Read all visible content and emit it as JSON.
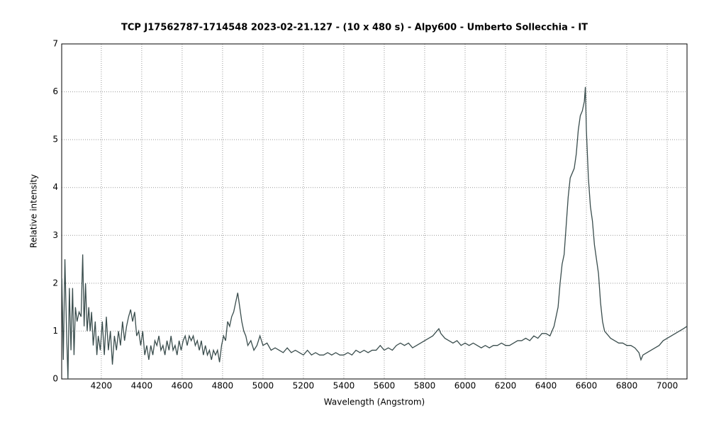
{
  "chart_data": {
    "type": "line",
    "title": "TCP J17562787-1714548   2023-02-21.127 -  (10 x 480 s) - Alpy600 -  Umberto Sollecchia - IT",
    "x_label": "Wavelength (Angstrom)",
    "y_label": "Relative intensity",
    "xlim": [
      4004,
      7098
    ],
    "ylim": [
      0,
      7
    ],
    "xticks": [
      4200,
      4400,
      4600,
      4800,
      5000,
      5200,
      5400,
      5600,
      5800,
      6000,
      6200,
      6400,
      6600,
      6800,
      7000
    ],
    "yticks": [
      0,
      1,
      2,
      3,
      4,
      5,
      6,
      7
    ],
    "grid": true,
    "x": [
      4005,
      4012,
      4020,
      4028,
      4035,
      4042,
      4050,
      4058,
      4065,
      4072,
      4080,
      4090,
      4100,
      4108,
      4115,
      4122,
      4130,
      4138,
      4145,
      4152,
      4160,
      4170,
      4178,
      4185,
      4195,
      4205,
      4215,
      4225,
      4235,
      4245,
      4255,
      4265,
      4275,
      4285,
      4295,
      4305,
      4315,
      4325,
      4335,
      4345,
      4355,
      4365,
      4375,
      4385,
      4395,
      4405,
      4415,
      4425,
      4435,
      4445,
      4455,
      4465,
      4475,
      4485,
      4495,
      4505,
      4515,
      4525,
      4535,
      4545,
      4555,
      4565,
      4575,
      4585,
      4595,
      4605,
      4615,
      4625,
      4635,
      4645,
      4655,
      4665,
      4675,
      4685,
      4695,
      4705,
      4715,
      4725,
      4735,
      4745,
      4755,
      4765,
      4775,
      4785,
      4795,
      4805,
      4815,
      4825,
      4835,
      4845,
      4855,
      4865,
      4875,
      4885,
      4895,
      4905,
      4915,
      4925,
      4940,
      4955,
      4970,
      4985,
      5000,
      5020,
      5040,
      5060,
      5080,
      5100,
      5120,
      5140,
      5160,
      5180,
      5200,
      5220,
      5240,
      5260,
      5280,
      5300,
      5320,
      5340,
      5360,
      5380,
      5400,
      5420,
      5440,
      5460,
      5480,
      5500,
      5520,
      5540,
      5560,
      5580,
      5600,
      5620,
      5640,
      5660,
      5680,
      5700,
      5720,
      5740,
      5760,
      5780,
      5800,
      5820,
      5840,
      5860,
      5870,
      5880,
      5900,
      5920,
      5940,
      5960,
      5980,
      6000,
      6020,
      6040,
      6060,
      6080,
      6100,
      6120,
      6140,
      6160,
      6180,
      6200,
      6220,
      6240,
      6260,
      6280,
      6300,
      6320,
      6340,
      6360,
      6380,
      6400,
      6420,
      6440,
      6460,
      6470,
      6480,
      6490,
      6500,
      6510,
      6520,
      6530,
      6540,
      6550,
      6560,
      6570,
      6580,
      6590,
      6595,
      6600,
      6610,
      6620,
      6630,
      6640,
      6650,
      6660,
      6670,
      6680,
      6690,
      6700,
      6720,
      6740,
      6760,
      6780,
      6800,
      6820,
      6840,
      6860,
      6870,
      6880,
      6900,
      6920,
      6940,
      6960,
      6980,
      7000,
      7020,
      7040,
      7060,
      7080,
      7098
    ],
    "series": [
      {
        "name": "TCP J17562787-1714548",
        "color": "#3a4d4d",
        "values": [
          2.1,
          0.4,
          2.5,
          1.0,
          0.0,
          1.9,
          0.6,
          1.9,
          0.5,
          1.5,
          1.2,
          1.4,
          1.3,
          2.6,
          1.1,
          2.0,
          1.0,
          1.5,
          1.0,
          1.4,
          0.7,
          1.2,
          0.5,
          0.9,
          0.6,
          1.2,
          0.5,
          1.3,
          0.6,
          1.0,
          0.3,
          0.9,
          0.6,
          1.0,
          0.7,
          1.2,
          0.8,
          1.1,
          1.3,
          1.45,
          1.2,
          1.4,
          0.9,
          1.0,
          0.7,
          1.0,
          0.5,
          0.7,
          0.4,
          0.7,
          0.5,
          0.8,
          0.7,
          0.9,
          0.6,
          0.7,
          0.5,
          0.8,
          0.6,
          0.9,
          0.6,
          0.7,
          0.5,
          0.8,
          0.6,
          0.8,
          0.9,
          0.7,
          0.9,
          0.8,
          0.9,
          0.7,
          0.8,
          0.6,
          0.8,
          0.5,
          0.7,
          0.5,
          0.6,
          0.4,
          0.6,
          0.5,
          0.6,
          0.35,
          0.7,
          0.9,
          0.8,
          1.2,
          1.1,
          1.3,
          1.4,
          1.6,
          1.8,
          1.5,
          1.2,
          1.0,
          0.9,
          0.7,
          0.8,
          0.6,
          0.7,
          0.9,
          0.7,
          0.75,
          0.6,
          0.65,
          0.6,
          0.55,
          0.65,
          0.55,
          0.6,
          0.55,
          0.5,
          0.6,
          0.5,
          0.55,
          0.5,
          0.5,
          0.55,
          0.5,
          0.55,
          0.5,
          0.5,
          0.55,
          0.5,
          0.6,
          0.55,
          0.6,
          0.55,
          0.6,
          0.6,
          0.7,
          0.6,
          0.65,
          0.6,
          0.7,
          0.75,
          0.7,
          0.75,
          0.65,
          0.7,
          0.75,
          0.8,
          0.85,
          0.9,
          1.0,
          1.05,
          0.95,
          0.85,
          0.8,
          0.75,
          0.8,
          0.7,
          0.75,
          0.7,
          0.75,
          0.7,
          0.65,
          0.7,
          0.65,
          0.7,
          0.7,
          0.75,
          0.7,
          0.7,
          0.75,
          0.8,
          0.8,
          0.85,
          0.8,
          0.9,
          0.85,
          0.95,
          0.95,
          0.9,
          1.1,
          1.5,
          2.0,
          2.4,
          2.6,
          3.2,
          3.8,
          4.2,
          4.3,
          4.4,
          4.7,
          5.2,
          5.5,
          5.6,
          5.8,
          6.1,
          5.2,
          4.2,
          3.6,
          3.3,
          2.8,
          2.5,
          2.2,
          1.6,
          1.2,
          1.0,
          0.95,
          0.85,
          0.8,
          0.75,
          0.75,
          0.7,
          0.7,
          0.65,
          0.55,
          0.4,
          0.5,
          0.55,
          0.6,
          0.65,
          0.7,
          0.8,
          0.85,
          0.9,
          0.95,
          1.0,
          1.05,
          1.1
        ]
      }
    ]
  }
}
